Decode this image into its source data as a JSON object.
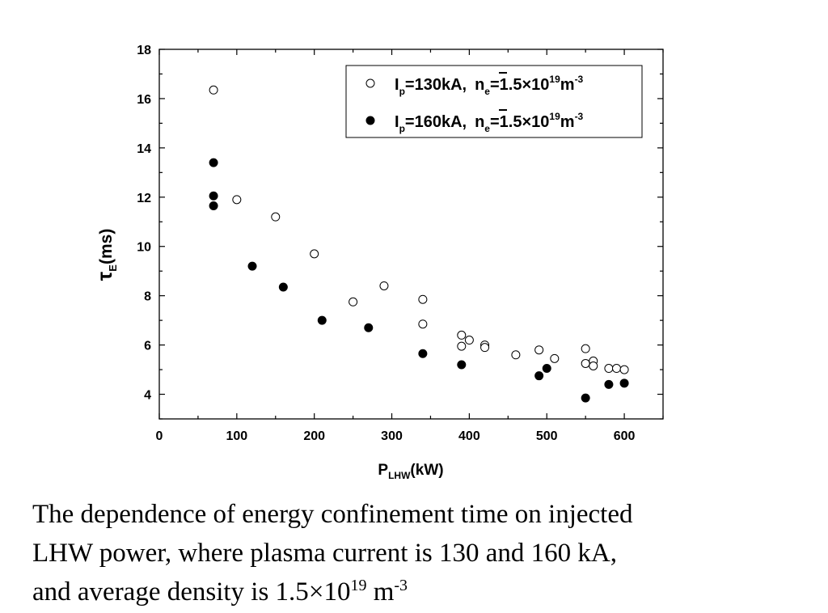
{
  "chart_data": {
    "type": "scatter",
    "xlabel": "P",
    "xlabel_sub": "LHW",
    "xlabel_tail": "(kW)",
    "ylabel": "τ",
    "ylabel_sub": "E",
    "ylabel_tail": "(ms)",
    "xlim": [
      0,
      650
    ],
    "ylim": [
      3,
      18
    ],
    "x_ticks": [
      0,
      100,
      200,
      300,
      400,
      500,
      600
    ],
    "y_ticks": [
      4,
      6,
      8,
      10,
      12,
      14,
      16,
      18
    ],
    "legend_placement": "top-right",
    "series": [
      {
        "marker": "open-circle",
        "legend": {
          "current": "I",
          "current_sub": "p",
          "current_val": "=130kA,",
          "density": "n",
          "density_sub": "e",
          "density_val": "=1.5×10",
          "density_exp": "19",
          "unit": "m",
          "unit_exp": "-3"
        },
        "points": [
          [
            70,
            16.35
          ],
          [
            100,
            11.9
          ],
          [
            150,
            11.2
          ],
          [
            200,
            9.7
          ],
          [
            250,
            7.75
          ],
          [
            290,
            8.4
          ],
          [
            340,
            7.85
          ],
          [
            340,
            6.85
          ],
          [
            390,
            6.4
          ],
          [
            390,
            5.95
          ],
          [
            400,
            6.2
          ],
          [
            420,
            6.0
          ],
          [
            420,
            5.9
          ],
          [
            460,
            5.6
          ],
          [
            490,
            5.8
          ],
          [
            510,
            5.45
          ],
          [
            550,
            5.85
          ],
          [
            550,
            5.25
          ],
          [
            560,
            5.35
          ],
          [
            560,
            5.15
          ],
          [
            580,
            5.05
          ],
          [
            590,
            5.05
          ],
          [
            600,
            5.0
          ]
        ]
      },
      {
        "marker": "filled-circle",
        "legend": {
          "current": "I",
          "current_sub": "p",
          "current_val": "=160kA,",
          "density": "n",
          "density_sub": "e",
          "density_val": "=1.5×10",
          "density_exp": "19",
          "unit": "m",
          "unit_exp": "-3"
        },
        "points": [
          [
            70,
            13.4
          ],
          [
            70,
            12.05
          ],
          [
            70,
            11.65
          ],
          [
            120,
            9.2
          ],
          [
            160,
            8.35
          ],
          [
            210,
            7.0
          ],
          [
            270,
            6.7
          ],
          [
            340,
            5.65
          ],
          [
            390,
            5.2
          ],
          [
            490,
            4.75
          ],
          [
            500,
            5.05
          ],
          [
            550,
            3.85
          ],
          [
            580,
            4.4
          ],
          [
            600,
            4.45
          ]
        ]
      }
    ]
  },
  "caption": {
    "line1": "The dependence of energy confinement time on injected",
    "line2": "LHW power, where plasma current is 130 and 160 kA,",
    "line3_pre": "and average density is 1.5",
    "line3_times": "×",
    "line3_base": "10",
    "line3_exp": "19",
    "line3_unit": " m",
    "line3_unit_exp": "-3"
  }
}
